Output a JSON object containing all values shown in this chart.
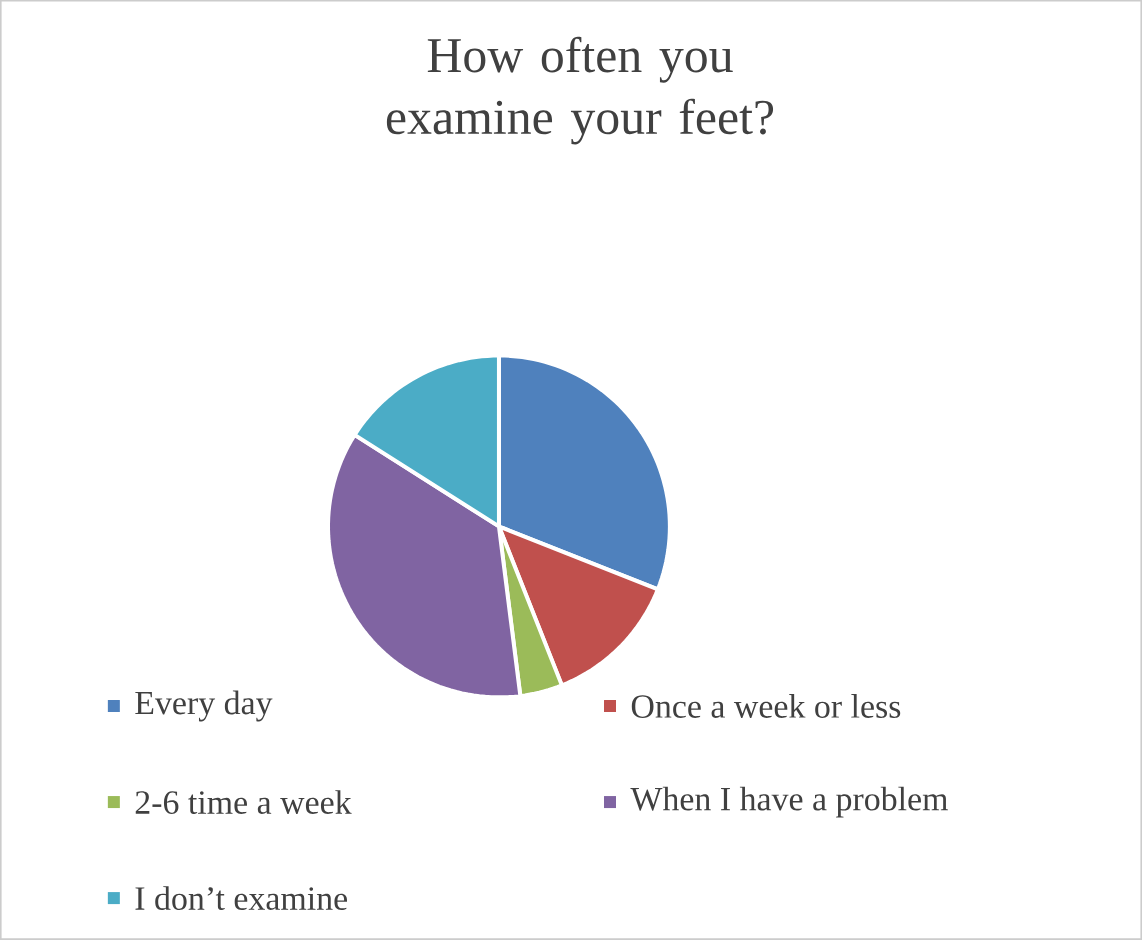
{
  "chart_data": {
    "type": "pie",
    "title": "How often you examine your feet?",
    "categories": [
      "Every day",
      "Once a week or less",
      "2-6 time a week",
      "When I have a problem",
      "I don’t examine"
    ],
    "values": [
      31,
      13,
      4,
      36,
      16
    ],
    "colors": [
      "#4f81bd",
      "#c0504d",
      "#9bbb59",
      "#8064a2",
      "#4bacc6"
    ],
    "legend": "bottom"
  }
}
